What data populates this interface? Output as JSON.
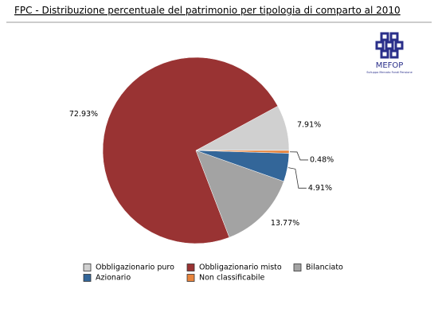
{
  "chart_data": {
    "type": "pie",
    "title": "FPC - Distribuzione percentuale del patrimonio per tipologia di comparto al 2010",
    "categories": [
      "Obbligazionario puro",
      "Obbligazionario misto",
      "Bilanciato",
      "Azionario",
      "Non classificabile"
    ],
    "values": [
      7.91,
      72.93,
      13.77,
      4.91,
      0.48
    ],
    "value_labels": [
      "7.91%",
      "72.93%",
      "13.77%",
      "4.91%",
      "0.48%"
    ],
    "colors": [
      "#d0d0d0",
      "#993333",
      "#a3a3a3",
      "#336699",
      "#e8843c"
    ]
  },
  "logo": {
    "name": "MEFOP",
    "tagline": "Sviluppo Mercato Fondi Pensione"
  }
}
